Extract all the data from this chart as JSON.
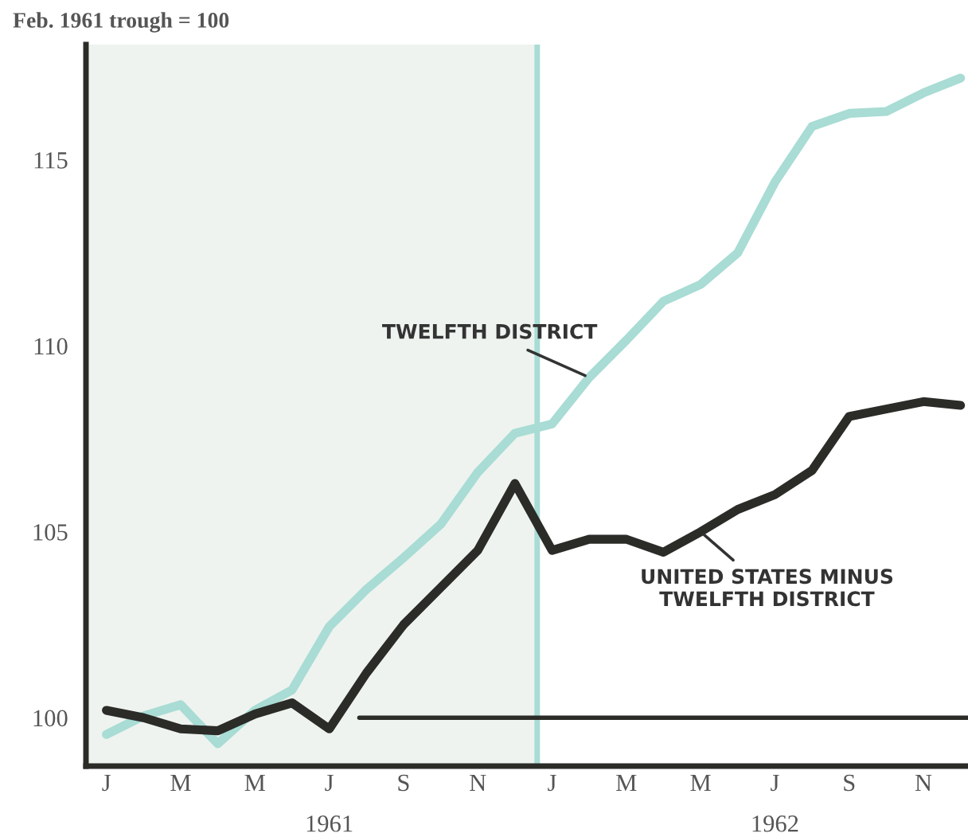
{
  "chart_data": {
    "type": "line",
    "ylabel": "Feb. 1961 trough = 100",
    "categories": [
      "J",
      null,
      "M",
      null,
      "M",
      null,
      "J",
      null,
      "S",
      null,
      "N",
      null,
      "J",
      null,
      "M",
      null,
      "M",
      null,
      "J",
      null,
      "S",
      null,
      "N",
      null
    ],
    "series": [
      {
        "name": "TWELFTH DISTRICT",
        "color": "#a8dcd4",
        "values": [
          99.55,
          100.05,
          100.35,
          99.3,
          100.2,
          100.75,
          102.45,
          103.45,
          104.3,
          105.2,
          106.6,
          107.65,
          107.9,
          109.15,
          110.15,
          111.2,
          111.65,
          112.5,
          114.4,
          115.9,
          116.25,
          116.3,
          116.8,
          117.2
        ]
      },
      {
        "name": "UNITED STATES MINUS\nTWELFTH DISTRICT",
        "color": "#2b2b28",
        "values": [
          100.2,
          100.0,
          99.7,
          99.65,
          100.1,
          100.4,
          99.7,
          101.2,
          102.5,
          103.5,
          104.5,
          106.3,
          104.5,
          104.8,
          104.8,
          104.45,
          105.0,
          105.6,
          106.0,
          106.65,
          108.1,
          108.3,
          108.5,
          108.4
        ]
      }
    ],
    "ylim": [
      98.7,
      118.1
    ],
    "yticks": [
      100,
      105,
      110,
      115
    ],
    "ref_lines": [
      {
        "axis": "y",
        "value": 100,
        "color": "#2b2b28"
      }
    ],
    "annotations": [
      "1961",
      "1962"
    ],
    "grid": false,
    "line_style": "solid",
    "marker": "none"
  }
}
